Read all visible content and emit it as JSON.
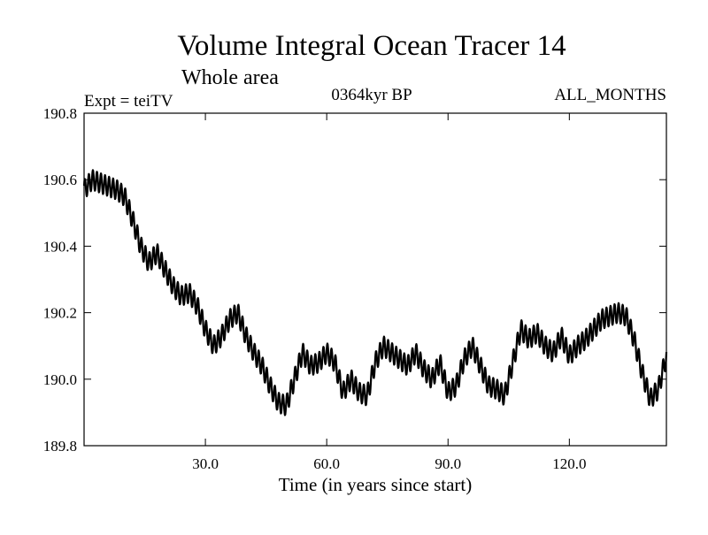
{
  "chart_data": {
    "type": "line",
    "title": "Volume Integral Ocean Tracer 14",
    "subtitle": "Whole area",
    "annotations": {
      "left": "Expt = teiTV",
      "center": "0364kyr BP",
      "right": "ALL_MONTHS"
    },
    "xlabel": "Time (in years since start)",
    "ylabel": "",
    "xlim": [
      0,
      144
    ],
    "ylim": [
      189.8,
      190.8
    ],
    "xticks": [
      30,
      60,
      90,
      120
    ],
    "xtick_labels": [
      "30.0",
      "60.0",
      "90.0",
      "120.0"
    ],
    "yticks": [
      189.8,
      190.0,
      190.2,
      190.4,
      190.6,
      190.8
    ],
    "ytick_labels": [
      "189.8",
      "190.0",
      "190.2",
      "190.4",
      "190.6",
      "190.8"
    ],
    "grid": false,
    "line_color": "#000000",
    "seasonal_amplitude": 0.03,
    "series": [
      {
        "name": "",
        "x": [
          0,
          2,
          4,
          6,
          8,
          10,
          12,
          14,
          16,
          18,
          20,
          22,
          24,
          26,
          28,
          30,
          32,
          34,
          36,
          38,
          40,
          42,
          44,
          46,
          48,
          50,
          52,
          54,
          56,
          58,
          60,
          62,
          64,
          66,
          68,
          70,
          72,
          74,
          76,
          78,
          80,
          82,
          84,
          86,
          88,
          90,
          92,
          94,
          96,
          98,
          100,
          102,
          104,
          106,
          108,
          110,
          112,
          114,
          116,
          118,
          120,
          122,
          124,
          126,
          128,
          130,
          132,
          134,
          136,
          138,
          140,
          142,
          144
        ],
        "y": [
          190.57,
          190.6,
          190.59,
          190.58,
          190.57,
          190.55,
          190.48,
          190.4,
          190.35,
          190.38,
          190.33,
          190.28,
          190.25,
          190.26,
          190.22,
          190.15,
          190.1,
          190.13,
          190.18,
          190.2,
          190.13,
          190.08,
          190.04,
          189.98,
          189.93,
          189.92,
          190.0,
          190.08,
          190.04,
          190.05,
          190.08,
          190.05,
          189.96,
          190.0,
          189.96,
          189.95,
          190.05,
          190.1,
          190.08,
          190.06,
          190.04,
          190.08,
          190.03,
          190.0,
          190.05,
          189.96,
          189.98,
          190.06,
          190.1,
          190.04,
          189.98,
          189.97,
          189.95,
          190.05,
          190.15,
          190.12,
          190.14,
          190.1,
          190.08,
          190.13,
          190.07,
          190.1,
          190.12,
          190.15,
          190.18,
          190.19,
          190.2,
          190.19,
          190.12,
          190.02,
          189.94,
          189.97,
          190.07
        ]
      }
    ]
  }
}
